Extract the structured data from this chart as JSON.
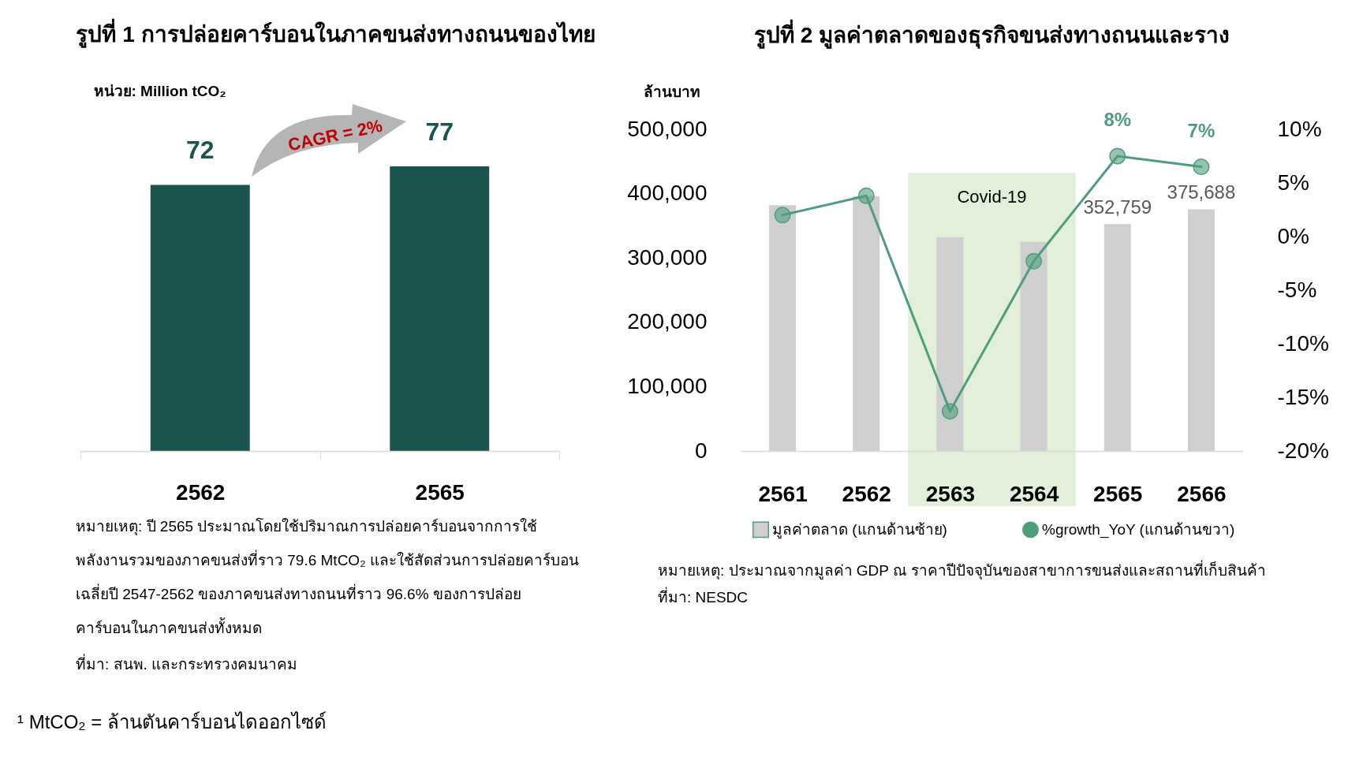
{
  "chart_data": [
    {
      "type": "bar",
      "title": "รูปที่ 1 การปล่อยคาร์บอนในภาคขนส่งทางถนนของไทย",
      "ylabel": "หน่วย: Million tCO₂",
      "categories": [
        "2562",
        "2565"
      ],
      "values": [
        72,
        77
      ],
      "color": "#1b544e",
      "data_labels": true,
      "annotations": [
        "CAGR = 2%",
        "หมายเหตุ: ปี 2565 ประมาณโดยใช้ปริมาณการปล่อยคาร์บอนจากการใช้\nพลังงานรวมของภาคขนส่งที่ราว 79.6 MtCO₂ และใช้สัดส่วนการปล่อยคาร์บอน\nเฉลี่ยปี 2547-2562 ของภาคขนส่งทางถนนที่ราว 96.6% ของการปล่อย\nคาร์บอนในภาคขนส่งทั้งหมด",
        "ที่มา: สนพ. และกระทรวงคมนาคม",
        "¹ MtCO₂ = ล้านตันคาร์บอนไดออกไซด์"
      ]
    },
    {
      "type": "bar",
      "title": "รูปที่ 2 มูลค่าตลาดของธุรกิจขนส่งทางถนนและราง",
      "ylabel": "ล้านบาท",
      "categories": [
        "2561",
        "2562",
        "2563",
        "2564",
        "2565",
        "2566"
      ],
      "series": [
        {
          "name": "มูลค่าตลาด (แกนด้านซ้าย)",
          "type": "bar",
          "color": "#d0cfd0",
          "values": [
            382000,
            396000,
            332000,
            325000,
            352759,
            375688
          ],
          "value_labels": [
            null,
            null,
            null,
            null,
            "352,759",
            "375,688"
          ]
        },
        {
          "name": "%growth_YoY (แกนด้านขวา)",
          "type": "line",
          "axis": "y2",
          "marker": "circle",
          "line_style": "solid",
          "color": "#4e9d7c",
          "values": [
            2,
            3.8,
            -16.3,
            -2.3,
            7.5,
            6.5
          ],
          "value_labels": [
            null,
            null,
            null,
            null,
            "8%",
            "7%"
          ]
        }
      ],
      "ylim": [
        0,
        500000
      ],
      "yticks": [
        0,
        {
          "value": 100000,
          "label": "100,000"
        },
        {
          "value": 200000,
          "label": "200,000"
        },
        {
          "value": 300000,
          "label": "300,000"
        },
        {
          "value": 400000,
          "label": "400,000"
        },
        {
          "value": 500000,
          "label": "500,000"
        }
      ],
      "y2lim": [
        -20,
        10
      ],
      "y2ticks": [
        {
          "value": -20,
          "label": "-20%"
        },
        {
          "value": -15,
          "label": "-15%"
        },
        {
          "value": -10,
          "label": "-10%"
        },
        {
          "value": -5,
          "label": "-5%"
        },
        {
          "value": 0,
          "label": "0%"
        },
        {
          "value": 5,
          "label": "5%"
        },
        {
          "value": 10,
          "label": "10%"
        }
      ],
      "bands": [
        {
          "axis": "x",
          "from": "2563",
          "to": "2564",
          "label": "Covid-19",
          "color": "#e2efd9"
        }
      ],
      "legend": "bottom",
      "annotations": [
        "หมายเหตุ: ประมาณจากมูลค่า GDP ณ ราคาปีปัจจุบันของสาขาการขนส่งและสถานที่เก็บสินค้า",
        "ที่มา: NESDC"
      ]
    }
  ]
}
